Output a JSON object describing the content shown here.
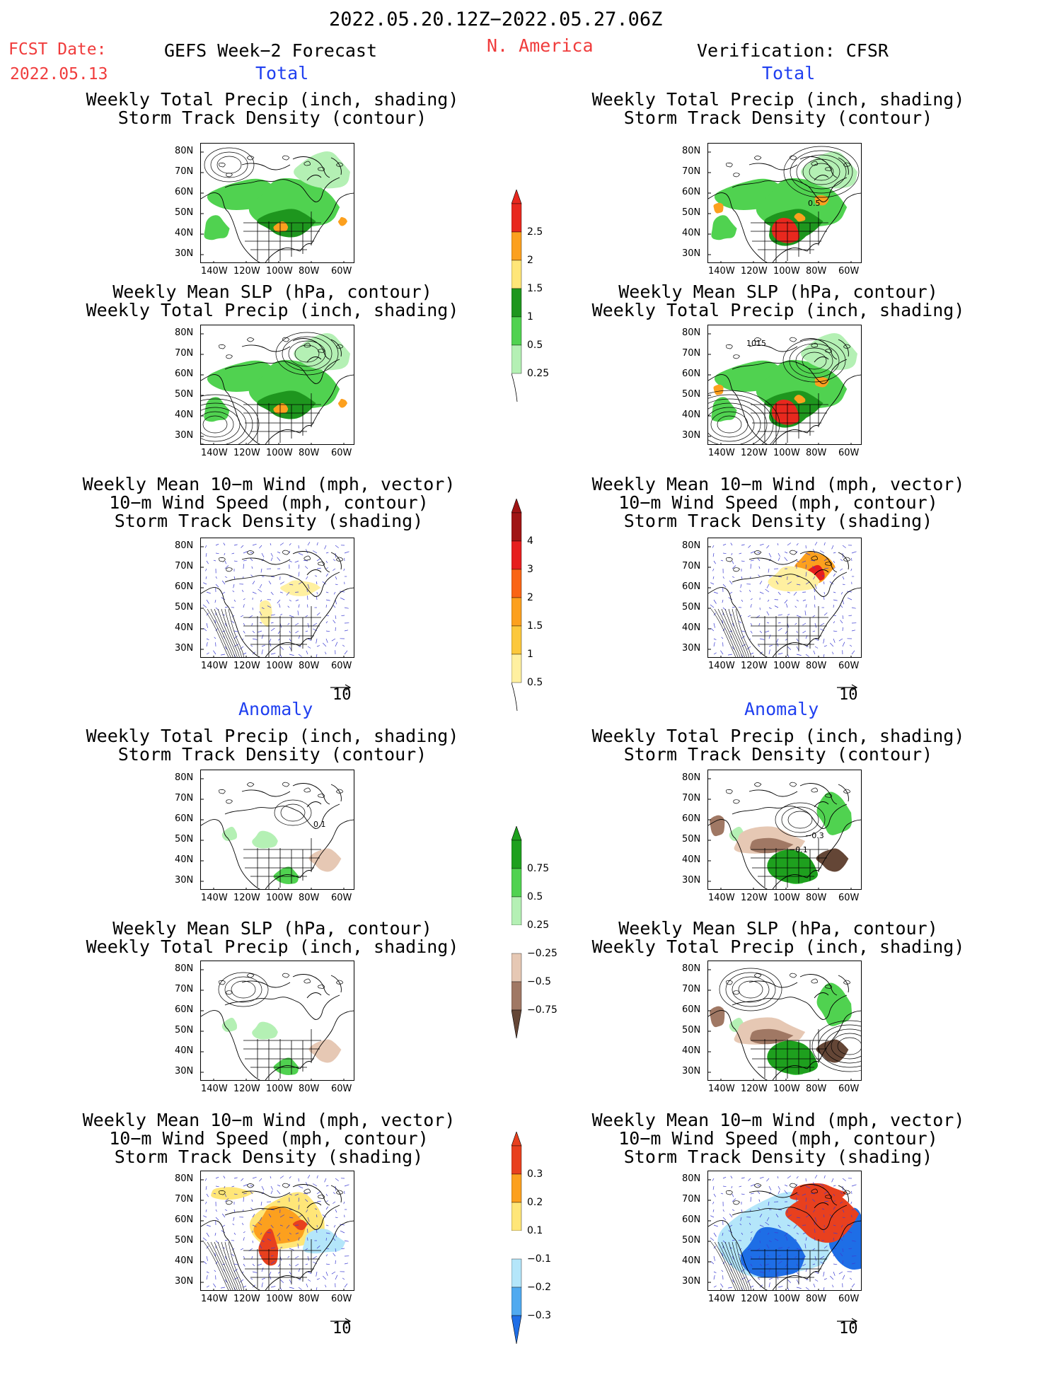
{
  "header": {
    "period": "2022.05.20.12Z−2022.05.27.06Z",
    "fcst_label": "FCST Date:",
    "fcst_date": "2022.05.13",
    "left_title": "GEFS Week−2 Forecast",
    "region": "N. America",
    "right_title": "Verification: CFSR"
  },
  "sections": {
    "total": "Total",
    "anomaly": "Anomaly"
  },
  "panel_titles": {
    "precip_storm": [
      "Weekly Total Precip (inch, shading)",
      "Storm Track Density (contour)"
    ],
    "slp_precip": [
      "Weekly Mean SLP (hPa, contour)",
      "Weekly Total Precip (inch, shading)"
    ],
    "wind_storm": [
      "Weekly Mean 10−m Wind (mph, vector)",
      "10−m Wind Speed (mph, contour)",
      "Storm Track Density (shading)"
    ]
  },
  "axes": {
    "lat_labels": [
      "80N",
      "70N",
      "60N",
      "50N",
      "40N",
      "30N"
    ],
    "lon_labels": [
      "140W",
      "120W",
      "100W",
      "80W",
      "60W"
    ]
  },
  "vector_ref": "10",
  "map_annotations": {
    "obs_total_precip": "0.5",
    "obs_total_slp": "1015",
    "fcst_anom_precip": "0.1",
    "obs_anom_precip_a": "−0.3",
    "obs_anom_precip_b": "−0.1"
  },
  "colorbars": {
    "precip_total": {
      "labels": [
        "2.5",
        "2",
        "1.5",
        "1",
        "0.5",
        "0.25"
      ],
      "colors": [
        "#e8281e",
        "#fca01e",
        "#ffe678",
        "#1e961e",
        "#50d250",
        "#b4f0b4"
      ]
    },
    "storm_total": {
      "labels": [
        "4",
        "3",
        "2",
        "1.5",
        "1",
        "0.5"
      ],
      "colors": [
        "#a01414",
        "#e61e1e",
        "#fa6414",
        "#fca01e",
        "#fcc83c",
        "#fff0a0"
      ]
    },
    "precip_anom": {
      "labels": [
        "0.75",
        "0.5",
        "0.25",
        "−0.25",
        "−0.5",
        "−0.75"
      ],
      "colors": [
        "#1ea01e",
        "#50d250",
        "#b4f0b4",
        "#ffffff",
        "#e6c8b4",
        "#a07864",
        "#644636"
      ]
    },
    "storm_anom": {
      "labels": [
        "0.3",
        "0.2",
        "0.1",
        "−0.1",
        "−0.2",
        "−0.3"
      ],
      "colors": [
        "#e8401e",
        "#fca01e",
        "#ffe678",
        "#ffffff",
        "#b4e6fa",
        "#50aaf0",
        "#1e6ee6"
      ]
    }
  }
}
